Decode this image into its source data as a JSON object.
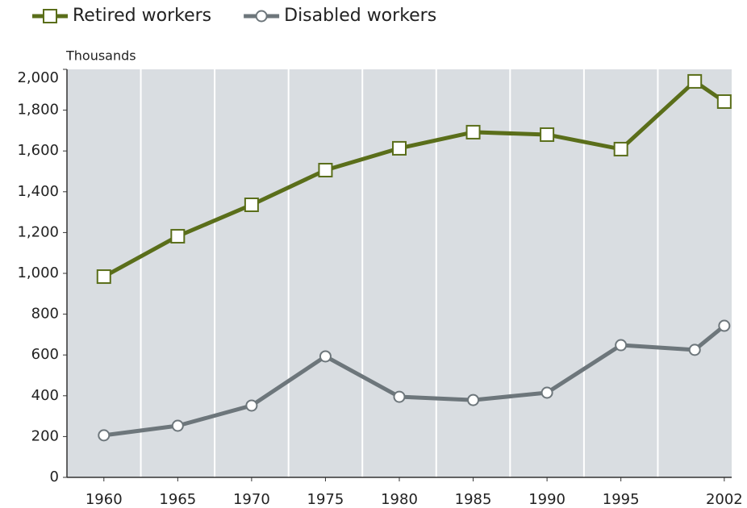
{
  "chart_data": {
    "type": "line",
    "y_label": "Thousands",
    "x": [
      1960,
      1965,
      1970,
      1975,
      1980,
      1985,
      1990,
      1995,
      2000,
      2002
    ],
    "xlim": [
      1957.5,
      2002.5
    ],
    "xticks": [
      1960,
      1965,
      1970,
      1975,
      1980,
      1985,
      1990,
      1995,
      2002
    ],
    "ylim": [
      0,
      2000
    ],
    "yticks": [
      0,
      {
        "value": 200,
        "label": "200"
      },
      400,
      600,
      800,
      {
        "value": 1000,
        "label": "1,000"
      },
      {
        "value": 1200,
        "label": "1,200"
      },
      {
        "value": 1400,
        "label": "1,400"
      },
      {
        "value": 1600,
        "label": "1,600"
      },
      {
        "value": 1800,
        "label": "1,800"
      },
      {
        "value": 2000,
        "label": "2,000"
      }
    ],
    "series": [
      {
        "name": "Retired workers",
        "color": "#5a6e1a",
        "marker": "square",
        "values": [
          984,
          1182,
          1336,
          1506,
          1613,
          1692,
          1680,
          1609,
          1941,
          1842
        ]
      },
      {
        "name": "Disabled workers",
        "color": "#6d767b",
        "marker": "circle",
        "values": [
          206,
          253,
          352,
          593,
          395,
          379,
          415,
          648,
          625,
          743
        ]
      }
    ]
  }
}
